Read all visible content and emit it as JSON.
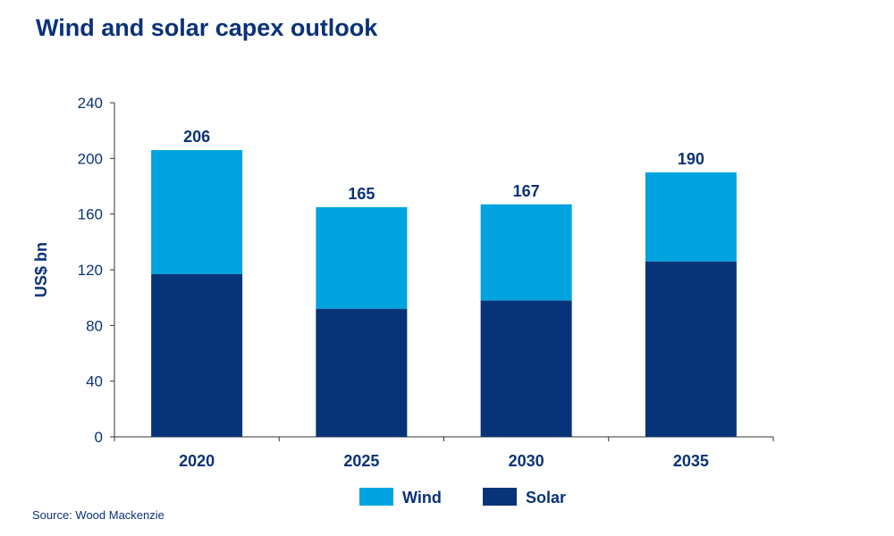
{
  "chart_data": {
    "type": "bar",
    "stacked": true,
    "title": "Wind and solar capex outlook",
    "ylabel": "US$ bn",
    "xlabel": "",
    "ylim": [
      0,
      240
    ],
    "yticks": [
      0,
      40,
      80,
      120,
      160,
      200,
      240
    ],
    "categories": [
      "2020",
      "2025",
      "2030",
      "2035"
    ],
    "series": [
      {
        "name": "Solar",
        "color": "#073478",
        "values": [
          117,
          92,
          98,
          126
        ]
      },
      {
        "name": "Wind",
        "color": "#00a3e0",
        "values": [
          89,
          73,
          69,
          64
        ]
      }
    ],
    "totals": [
      "206",
      "165",
      "167",
      "190"
    ],
    "legend": "bottom",
    "grid": false
  },
  "source": "Source: Wood Mackenzie"
}
